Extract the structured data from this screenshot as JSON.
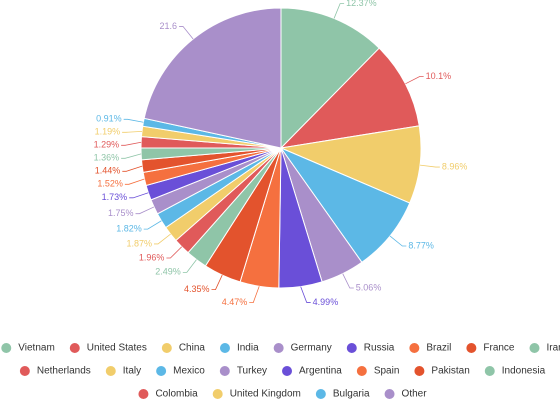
{
  "chart_data": {
    "type": "pie",
    "categories": [
      "Vietnam",
      "United States",
      "China",
      "India",
      "Germany",
      "Russia",
      "Brazil",
      "France",
      "Iran",
      "Netherlands",
      "Italy",
      "Mexico",
      "Turkey",
      "Argentina",
      "Spain",
      "Pakistan",
      "Indonesia",
      "Colombia",
      "United Kingdom",
      "Bulgaria",
      "Other"
    ],
    "values": [
      12.37,
      10.1,
      8.96,
      8.77,
      5.06,
      4.99,
      4.47,
      4.35,
      2.49,
      1.96,
      1.87,
      1.82,
      1.75,
      1.73,
      1.52,
      1.44,
      1.36,
      1.29,
      1.19,
      0.91,
      21.6
    ],
    "value_labels": [
      "12.37%",
      "10.1%",
      "8.96%",
      "8.77%",
      "5.06%",
      "4.99%",
      "4.47%",
      "4.35%",
      "2.49%",
      "1.96%",
      "1.87%",
      "1.82%",
      "1.75%",
      "1.73%",
      "1.52%",
      "1.44%",
      "1.36%",
      "1.29%",
      "1.19%",
      "0.91%",
      "21.6"
    ],
    "colors": [
      "#8fc5a8",
      "#e05a5a",
      "#f1cd6b",
      "#5cb8e6",
      "#a98fca",
      "#6a4fd8",
      "#f5703f",
      "#e3532d",
      "#8fc5a8",
      "#e05a5a",
      "#f1cd6b",
      "#5cb8e6",
      "#a98fca",
      "#6a4fd8",
      "#f5703f",
      "#e3532d",
      "#8fc5a8",
      "#e05a5a",
      "#f1cd6b",
      "#5cb8e6",
      "#a98fca"
    ],
    "legend": "bottom"
  }
}
